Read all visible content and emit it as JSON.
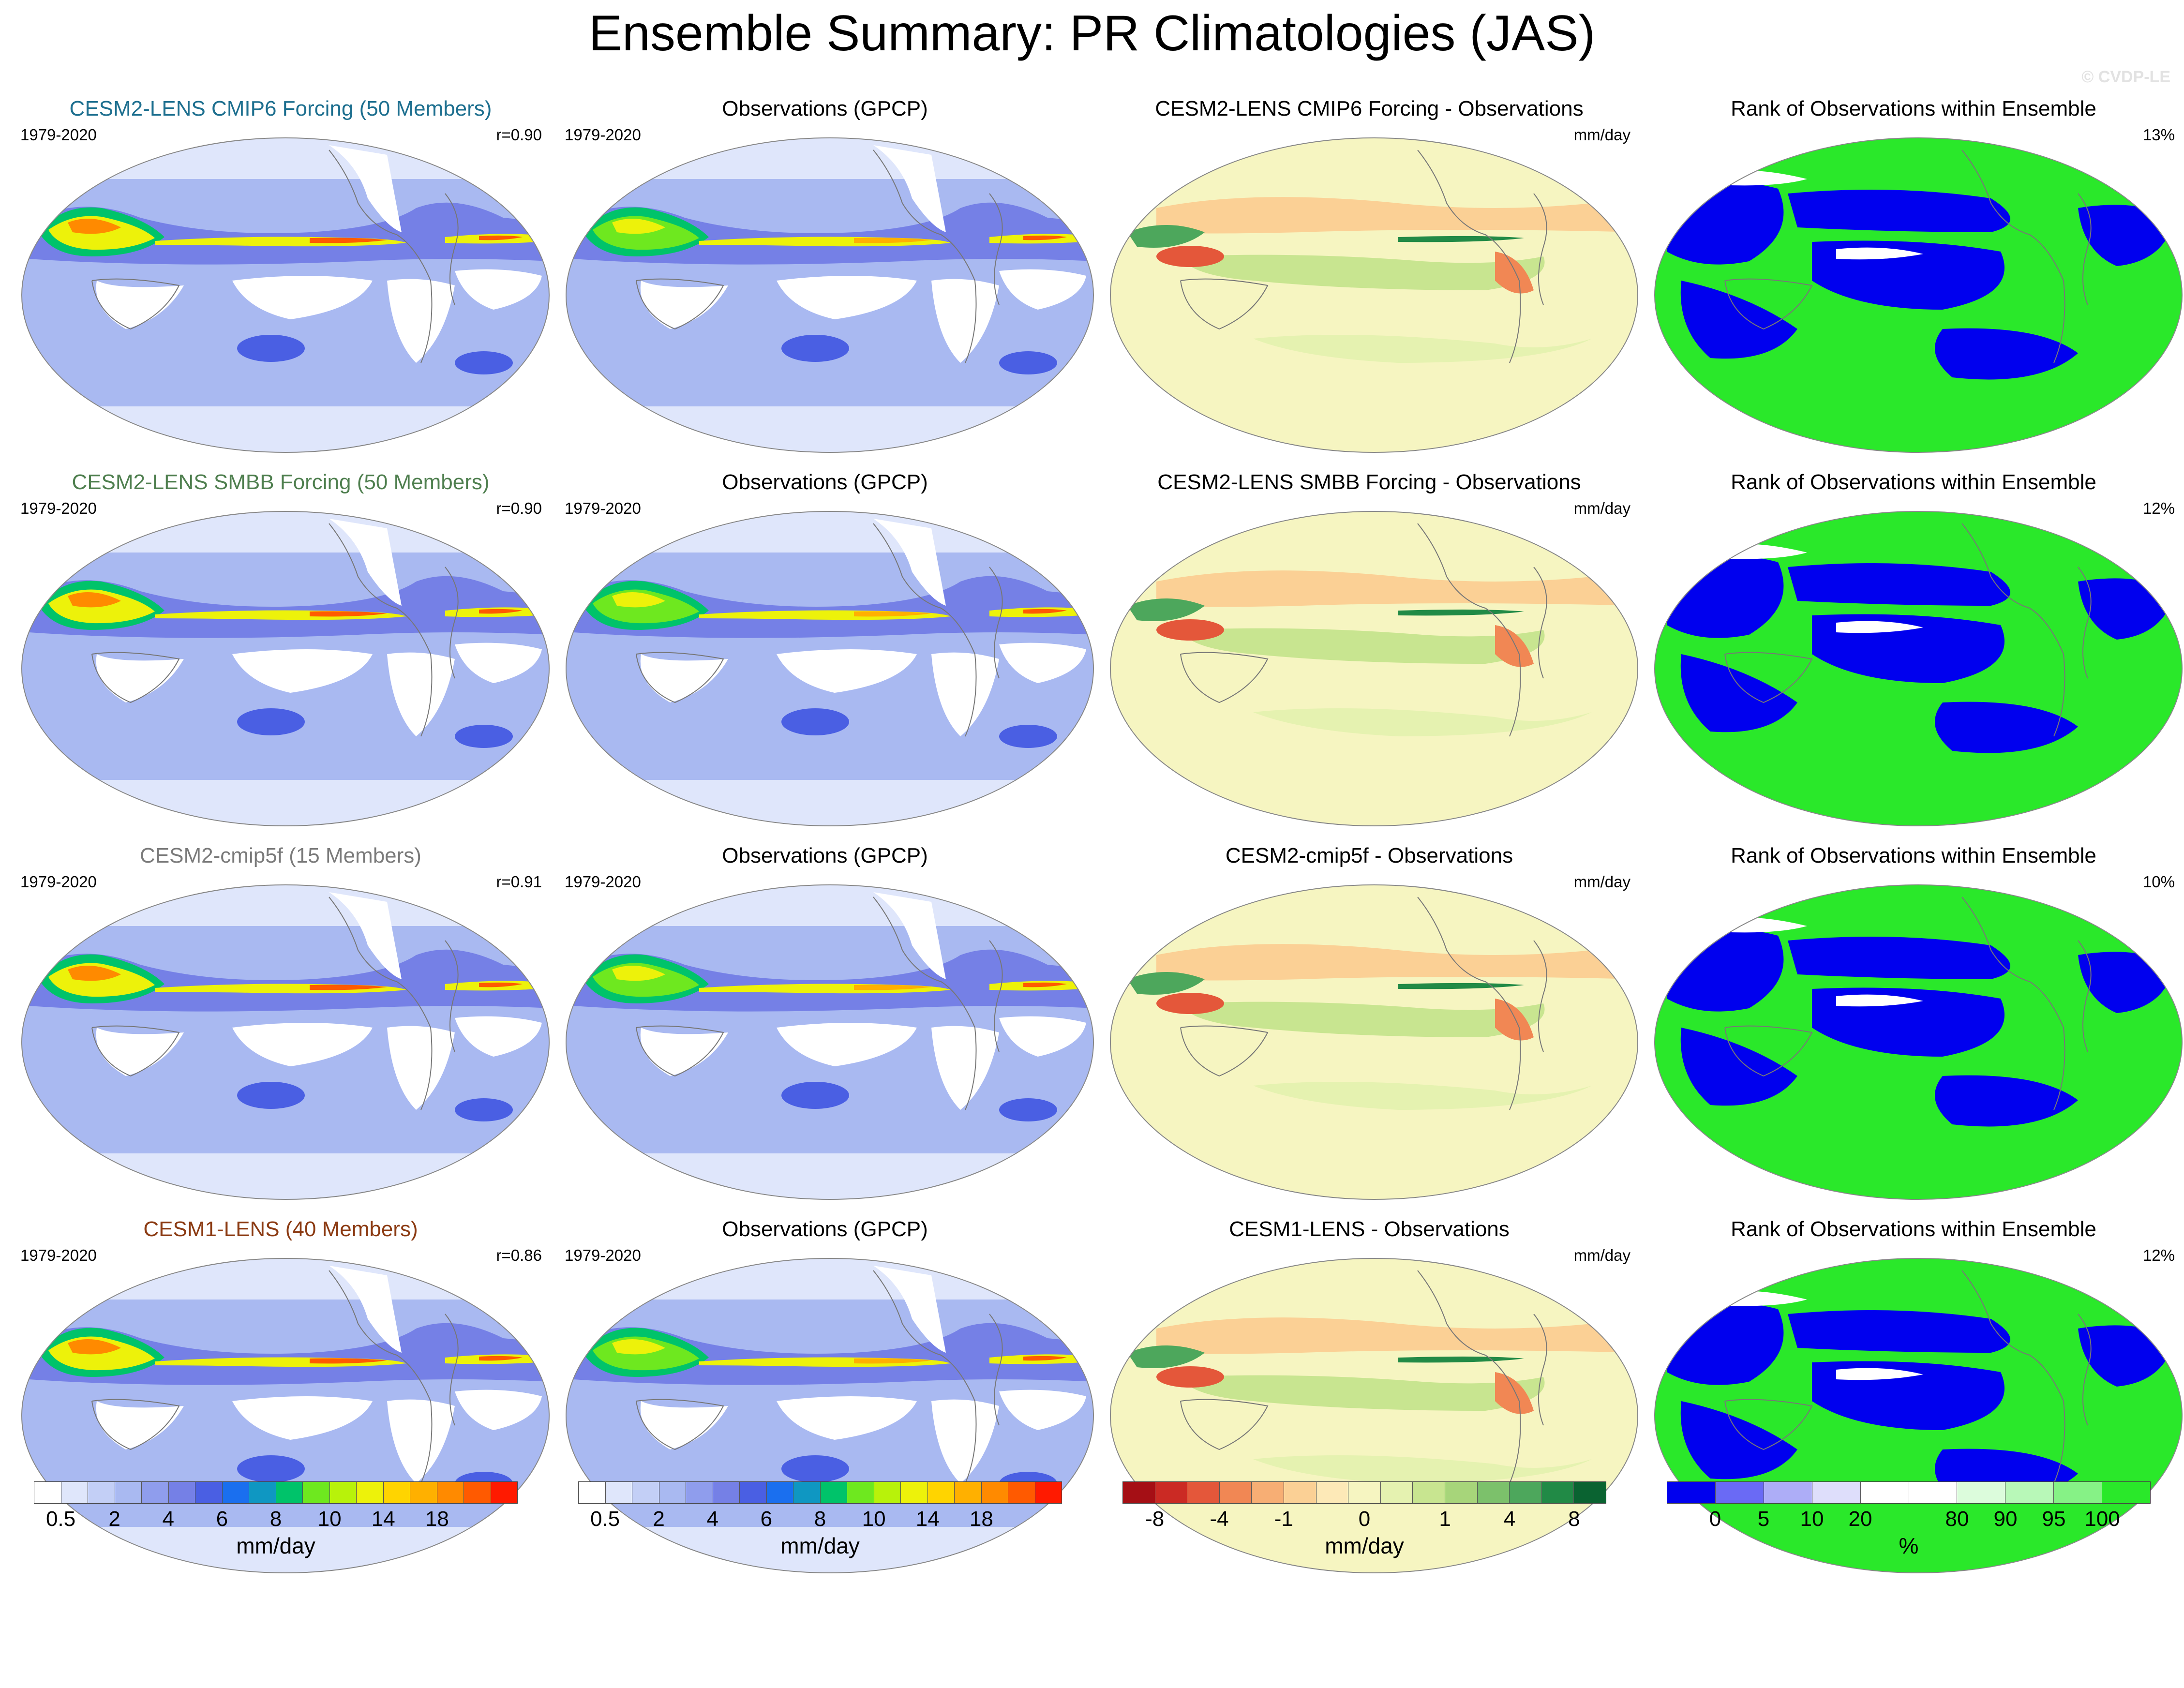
{
  "title": "Ensemble Summary: PR Climatologies (JAS)",
  "watermark": "© CVDP-LE",
  "rows": [
    {
      "model": {
        "title": "CESM2-LENS CMIP6 Forcing (50 Members)",
        "color": "#1d6f8f",
        "years": "1979-2020",
        "stat": "r=0.90"
      },
      "obs": {
        "title": "Observations (GPCP)",
        "years": "1979-2020"
      },
      "diff": {
        "title": "CESM2-LENS CMIP6 Forcing - Observations",
        "unit": "mm/day"
      },
      "rank": {
        "title": "Rank of Observations within Ensemble",
        "pct": "13%"
      }
    },
    {
      "model": {
        "title": "CESM2-LENS SMBB Forcing (50 Members)",
        "color": "#4f7f4f",
        "years": "1979-2020",
        "stat": "r=0.90"
      },
      "obs": {
        "title": "Observations (GPCP)",
        "years": "1979-2020"
      },
      "diff": {
        "title": "CESM2-LENS SMBB Forcing - Observations",
        "unit": "mm/day"
      },
      "rank": {
        "title": "Rank of Observations within Ensemble",
        "pct": "12%"
      }
    },
    {
      "model": {
        "title": "CESM2-cmip5f (15 Members)",
        "color": "#7a7a7a",
        "years": "1979-2020",
        "stat": "r=0.91"
      },
      "obs": {
        "title": "Observations (GPCP)",
        "years": "1979-2020"
      },
      "diff": {
        "title": "CESM2-cmip5f - Observations",
        "unit": "mm/day"
      },
      "rank": {
        "title": "Rank of Observations within Ensemble",
        "pct": "10%"
      }
    },
    {
      "model": {
        "title": "CESM1-LENS (40 Members)",
        "color": "#8b3a12",
        "years": "1979-2020",
        "stat": "r=0.86"
      },
      "obs": {
        "title": "Observations (GPCP)",
        "years": "1979-2020"
      },
      "diff": {
        "title": "CESM1-LENS - Observations",
        "unit": "mm/day"
      },
      "rank": {
        "title": "Rank of Observations within Ensemble",
        "pct": "12%"
      }
    }
  ],
  "colorbars": [
    {
      "name": "precip",
      "unit": "mm/day",
      "colors": [
        "#ffffff",
        "#dfe6fb",
        "#c3cff6",
        "#a9b9f1",
        "#8f9ded",
        "#7580e6",
        "#4a5fe3",
        "#1a6fef",
        "#0f97c2",
        "#00c36a",
        "#6ee81f",
        "#b8f20a",
        "#edf20a",
        "#ffd400",
        "#ffb000",
        "#ff8a00",
        "#ff5a00",
        "#ff1a00"
      ],
      "ticks": [
        {
          "label": "0.5",
          "i": 1
        },
        {
          "label": "2",
          "i": 3
        },
        {
          "label": "4",
          "i": 5
        },
        {
          "label": "6",
          "i": 7
        },
        {
          "label": "8",
          "i": 9
        },
        {
          "label": "10",
          "i": 11
        },
        {
          "label": "14",
          "i": 13
        },
        {
          "label": "18",
          "i": 15
        }
      ]
    },
    {
      "name": "precip-obs",
      "unit": "mm/day",
      "colors": [
        "#ffffff",
        "#dfe6fb",
        "#c3cff6",
        "#a9b9f1",
        "#8f9ded",
        "#7580e6",
        "#4a5fe3",
        "#1a6fef",
        "#0f97c2",
        "#00c36a",
        "#6ee81f",
        "#b8f20a",
        "#edf20a",
        "#ffd400",
        "#ffb000",
        "#ff8a00",
        "#ff5a00",
        "#ff1a00"
      ],
      "ticks": [
        {
          "label": "0.5",
          "i": 1
        },
        {
          "label": "2",
          "i": 3
        },
        {
          "label": "4",
          "i": 5
        },
        {
          "label": "6",
          "i": 7
        },
        {
          "label": "8",
          "i": 9
        },
        {
          "label": "10",
          "i": 11
        },
        {
          "label": "14",
          "i": 13
        },
        {
          "label": "18",
          "i": 15
        }
      ]
    },
    {
      "name": "difference",
      "unit": "mm/day",
      "colors": [
        "#a50f15",
        "#cb2a24",
        "#e4573a",
        "#f18754",
        "#f7ae74",
        "#fbd095",
        "#fde9b7",
        "#f6f5c1",
        "#e5f2b0",
        "#c8e590",
        "#a7d57a",
        "#7cc16b",
        "#4da75c",
        "#218a46",
        "#0a6331"
      ],
      "ticks": [
        {
          "label": "-8",
          "i": 1
        },
        {
          "label": "-4",
          "i": 3
        },
        {
          "label": "-1",
          "i": 5
        },
        {
          "label": "0",
          "i": 7.5
        },
        {
          "label": "1",
          "i": 10
        },
        {
          "label": "4",
          "i": 12
        },
        {
          "label": "8",
          "i": 14
        }
      ]
    },
    {
      "name": "rank",
      "unit": "%",
      "colors": [
        "#0000ee",
        "#6a6af5",
        "#adadf7",
        "#dedefb",
        "#ffffff",
        "#ffffff",
        "#dcfcdc",
        "#b8f8b8",
        "#86f286",
        "#2ae82a"
      ],
      "ticks": [
        {
          "label": "0",
          "i": 1
        },
        {
          "label": "5",
          "i": 2
        },
        {
          "label": "10",
          "i": 3
        },
        {
          "label": "20",
          "i": 4
        },
        {
          "label": "80",
          "i": 6
        },
        {
          "label": "90",
          "i": 7
        },
        {
          "label": "95",
          "i": 8
        },
        {
          "label": "100",
          "i": 9
        }
      ]
    }
  ]
}
